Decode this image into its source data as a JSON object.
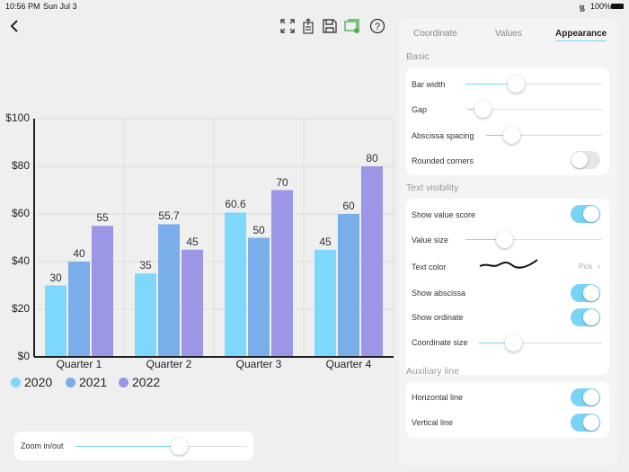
{
  "status": {
    "time": "10:56 PM",
    "date": "Sun Jul 3",
    "battery": "100%"
  },
  "toolbar": {
    "icons": [
      "back-icon",
      "fullscreen-icon",
      "export-icon",
      "save-icon",
      "image-icon",
      "help-icon"
    ]
  },
  "tabs": [
    {
      "label": "Coordinate"
    },
    {
      "label": "Values"
    },
    {
      "label": "Appearance",
      "active": true
    }
  ],
  "sections": {
    "basic": {
      "title": "Basic",
      "bar_width": {
        "label": "Bar width",
        "value": 0.37
      },
      "gap": {
        "label": "Gap",
        "value": 0.11
      },
      "abscissa_spacing": {
        "label": "Abscissa spacing",
        "value": 0.22
      },
      "rounded_corners": {
        "label": "Rounded corners",
        "on": false
      }
    },
    "text": {
      "title": "Text visibility",
      "show_value_score": {
        "label": "Show value score",
        "on": true
      },
      "value_size": {
        "label": "Value size",
        "value": 0.28
      },
      "text_color": {
        "label": "Text color",
        "pick": "Pick"
      },
      "show_abscissa": {
        "label": "Show abscissa",
        "on": true
      },
      "show_ordinate": {
        "label": "Show ordinate",
        "on": true
      },
      "coordinate_size": {
        "label": "Coordinate size",
        "value": 0.28
      }
    },
    "aux": {
      "title": "Auxiliary line",
      "horizontal": {
        "label": "Horizontal line",
        "on": true
      },
      "vertical": {
        "label": "Vertical line",
        "on": true
      }
    }
  },
  "zoom": {
    "label": "Zoom in/out",
    "value": 0.6
  },
  "chart_data": {
    "type": "bar",
    "categories": [
      "Quarter 1",
      "Quarter 2",
      "Quarter 3",
      "Quarter 4"
    ],
    "series": [
      {
        "name": "2020",
        "values": [
          30,
          35,
          60.6,
          45
        ],
        "color": "#7dd8fb"
      },
      {
        "name": "2021",
        "values": [
          40,
          55.7,
          50,
          60
        ],
        "color": "#7aaeea"
      },
      {
        "name": "2022",
        "values": [
          55,
          45,
          70,
          80
        ],
        "color": "#9b96e6"
      }
    ],
    "yticks": [
      "$0",
      "$20",
      "$40",
      "$60",
      "$80",
      "$100"
    ],
    "ylim": [
      0,
      100
    ],
    "grid": true,
    "legend": "bottom-left"
  }
}
